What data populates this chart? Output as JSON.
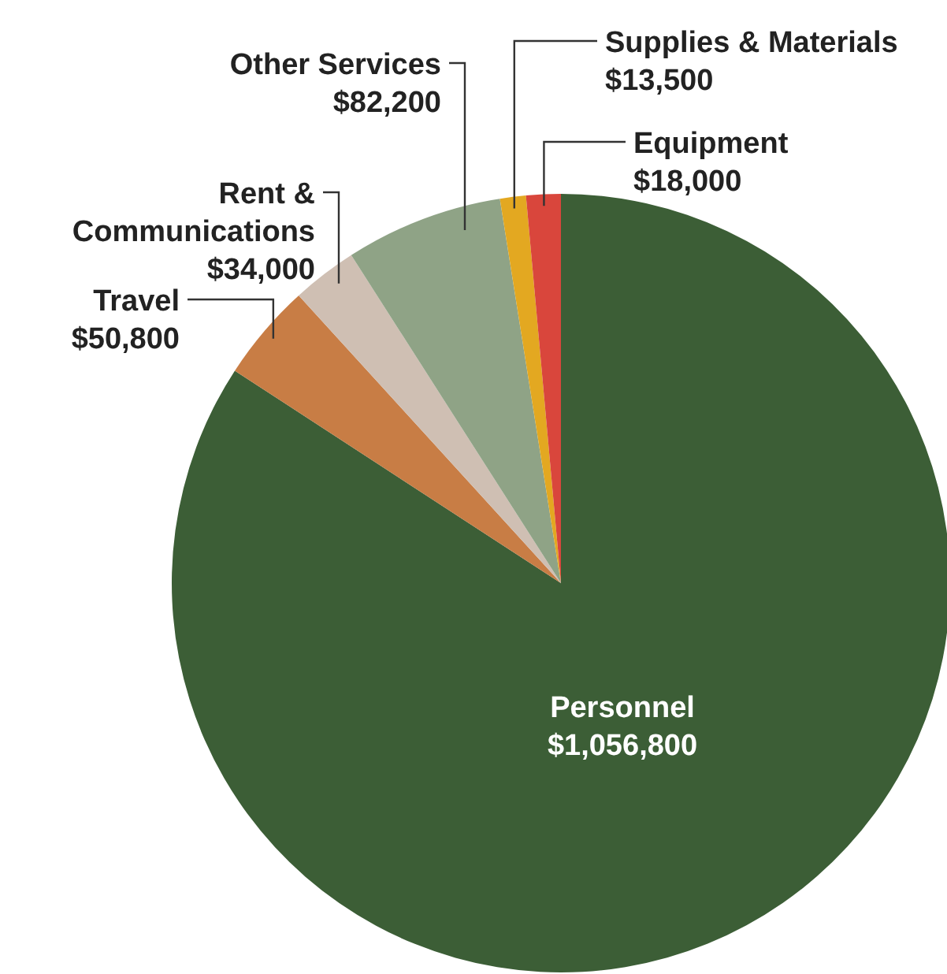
{
  "chart_data": {
    "type": "pie",
    "categories": [
      "Personnel",
      "Travel",
      "Rent & Communications",
      "Other Services",
      "Supplies & Materials",
      "Equipment"
    ],
    "values": [
      1056800,
      50800,
      34000,
      82200,
      13500,
      18000
    ],
    "value_labels": [
      "$1,056,800",
      "$50,800",
      "$34,000",
      "$82,200",
      "$13,500",
      "$18,000"
    ],
    "colors": [
      "#3c5e36",
      "#c87d45",
      "#cfbfb3",
      "#8fa386",
      "#e3a821",
      "#d9463c"
    ]
  }
}
